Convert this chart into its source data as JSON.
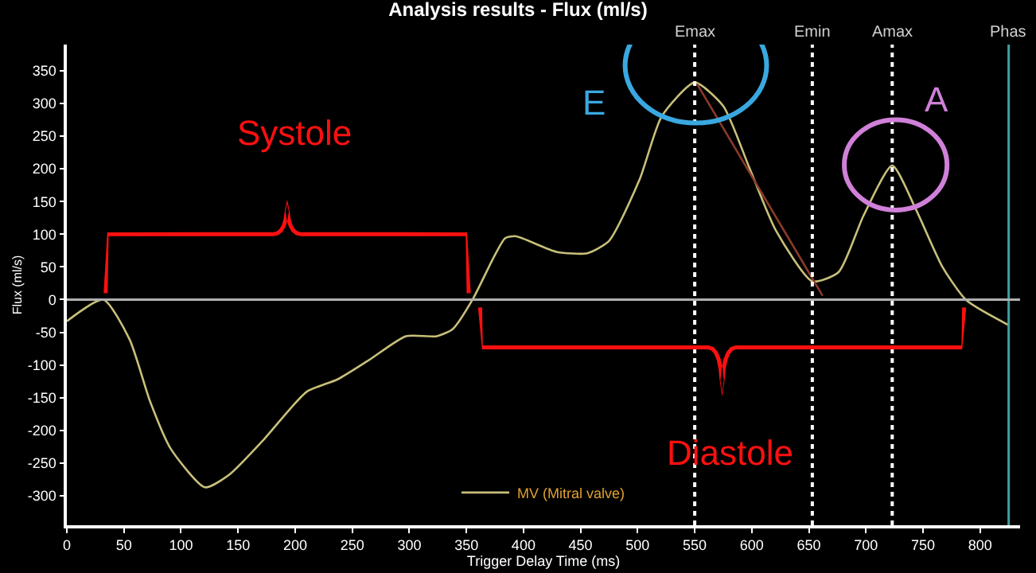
{
  "chart_data": {
    "type": "line",
    "title": "Analysis results - Flux (ml/s)",
    "xlabel": "Trigger Delay Time (ms)",
    "ylabel": "Flux (ml/s)",
    "xlim": [
      0,
      835
    ],
    "ylim": [
      -345,
      390
    ],
    "xticks": [
      0,
      50,
      100,
      150,
      200,
      250,
      300,
      350,
      400,
      450,
      500,
      550,
      600,
      650,
      700,
      750,
      800
    ],
    "yticks": [
      -300,
      -250,
      -200,
      -150,
      -100,
      -50,
      0,
      50,
      100,
      150,
      200,
      250,
      300,
      350
    ],
    "grid": false,
    "legend": "bottom",
    "marker": "none",
    "line_style": "solid",
    "series": [
      {
        "name": "MV (Mitral valve)",
        "color": "#c8c07a",
        "x": [
          0,
          32,
          55,
          73,
          91,
          121,
          142,
          173,
          210,
          237,
          265,
          297,
          324,
          338,
          356,
          374,
          384,
          393,
          429,
          456,
          475,
          502,
          521,
          550,
          575,
          598,
          621,
          653,
          676,
          698,
          723,
          744,
          767,
          788,
          825
        ],
        "values": [
          -33,
          0,
          -61,
          -156,
          -228,
          -287,
          -268,
          -213,
          -141,
          -122,
          -92,
          -56,
          -56,
          -45,
          2,
          65,
          94,
          97,
          73,
          71,
          90,
          185,
          280,
          332,
          296,
          201,
          106,
          28,
          42,
          129,
          205,
          137,
          50,
          -1,
          -39
        ]
      },
      {
        "color": "#8b3a2a",
        "x": [
          552,
          662
        ],
        "values": [
          330,
          6
        ]
      }
    ],
    "ref_lines": [
      {
        "axis": "x",
        "value": 550,
        "label": "Emax",
        "color": "#ffffff",
        "line_style": "dotted"
      },
      {
        "axis": "x",
        "value": 653,
        "label": "Emin",
        "color": "#ffffff",
        "line_style": "dotted"
      },
      {
        "axis": "x",
        "value": 723,
        "label": "Amax",
        "color": "#ffffff",
        "line_style": "dotted"
      },
      {
        "axis": "x",
        "value": 825,
        "label": "Phas",
        "color": "#40a0a0",
        "line_style": "solid"
      },
      {
        "axis": "y",
        "value": 0,
        "color": "#b0b0b0",
        "line_style": "solid"
      }
    ],
    "annotations": [
      "Systole",
      "Diastole",
      "E",
      "A"
    ]
  }
}
